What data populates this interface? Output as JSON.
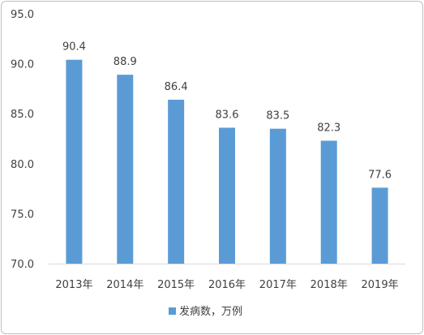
{
  "chart_data": {
    "type": "bar",
    "categories": [
      "2013年",
      "2014年",
      "2015年",
      "2016年",
      "2017年",
      "2018年",
      "2019年"
    ],
    "series": [
      {
        "name": "发病数，万例",
        "values": [
          90.4,
          88.9,
          86.4,
          83.6,
          83.5,
          82.3,
          77.6
        ]
      }
    ],
    "data_labels": [
      "90.4",
      "88.9",
      "86.4",
      "83.6",
      "83.5",
      "82.3",
      "77.6"
    ],
    "y_ticks": [
      "70.0",
      "75.0",
      "80.0",
      "85.0",
      "90.0",
      "95.0"
    ],
    "ylim": [
      70,
      95
    ],
    "grid": false,
    "legend_position": "bottom",
    "colors": {
      "bar": "#5b9bd5",
      "axis": "#d9d9d9",
      "text": "#404040"
    }
  }
}
